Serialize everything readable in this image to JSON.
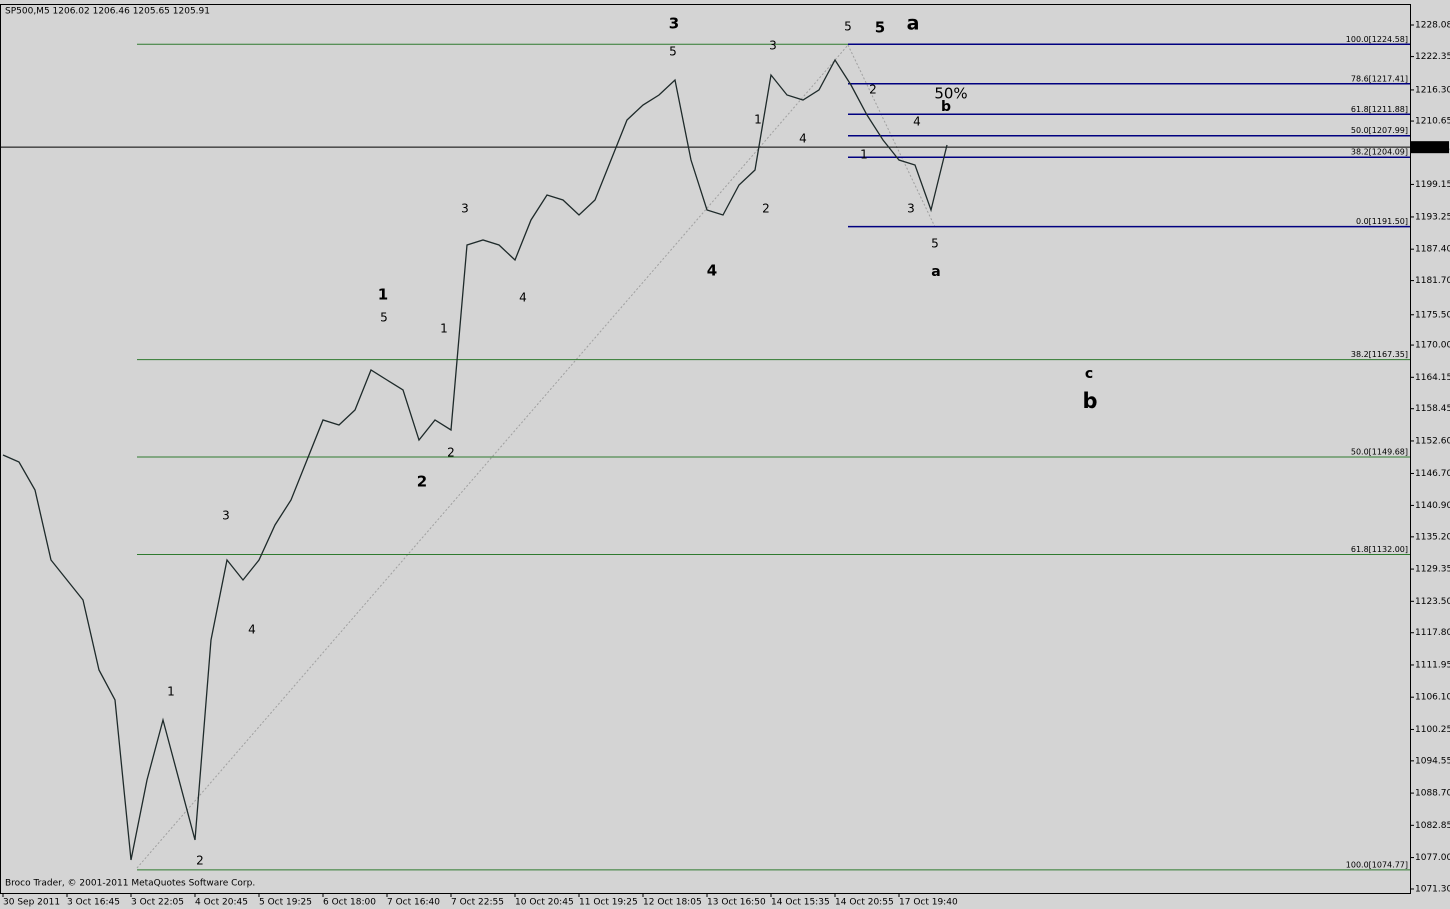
{
  "chart_data": {
    "type": "line",
    "title": "SP500,M5  1206.02 1206.46 1205.65 1205.91",
    "footer": "Broco Trader, © 2001-2011 MetaQuotes Software Corp.",
    "categories": [
      "30 Sep 2011",
      null,
      null,
      null,
      "3 Oct 16:45",
      null,
      null,
      null,
      "3 Oct 22:05",
      null,
      null,
      null,
      "4 Oct 20:45",
      null,
      null,
      null,
      "5 Oct 19:25",
      null,
      null,
      null,
      "6 Oct 18:00",
      null,
      null,
      null,
      "7 Oct 16:40",
      null,
      null,
      null,
      "7 Oct 22:55",
      null,
      null,
      null,
      "10 Oct 20:45",
      null,
      null,
      null,
      "11 Oct 19:25",
      null,
      null,
      null,
      "12 Oct 18:05",
      null,
      null,
      null,
      "13 Oct 16:50",
      null,
      null,
      null,
      "14 Oct 15:35",
      null,
      null,
      null,
      "14 Oct 20:55",
      null,
      null,
      null,
      "17 Oct 19:40",
      null,
      null,
      null,
      null,
      null,
      null,
      null,
      null,
      null,
      null,
      null,
      null,
      null,
      null,
      null,
      null,
      null,
      null,
      null,
      null,
      null,
      null,
      null,
      null,
      null,
      null,
      null,
      null,
      null,
      null,
      null
    ],
    "series": [
      {
        "name": "SP500,M5",
        "color": "#1e2a2a",
        "values": [
          1150.05,
          1148.78,
          1143.7,
          1131.0,
          1127.37,
          1123.74,
          1111.04,
          1105.6,
          1076.56,
          1091.08,
          1101.97,
          1091.08,
          1080.19,
          1116.49,
          1131.0,
          1127.37,
          1131.0,
          1137.35,
          1141.89,
          1149.15,
          1156.41,
          1155.5,
          1158.22,
          1165.48,
          1163.66,
          1161.85,
          1152.77,
          1156.41,
          1154.59,
          1188.16,
          1189.07,
          1188.16,
          1185.44,
          1192.7,
          1197.23,
          1196.33,
          1193.6,
          1196.33,
          1203.58,
          1210.84,
          1213.56,
          1215.38,
          1218.1,
          1203.58,
          1194.51,
          1193.6,
          1199.05,
          1201.77,
          1219.01,
          1215.38,
          1214.47,
          1216.29,
          1221.73,
          1217.19,
          1211.75,
          1207.21,
          1203.58,
          1202.68,
          1194.51,
          1206.3,
          null,
          null,
          null,
          null,
          null,
          null,
          null,
          null,
          null,
          null,
          null,
          null,
          null,
          null,
          null,
          null,
          null,
          null,
          null,
          null,
          null,
          null,
          null,
          null,
          null,
          null,
          null,
          null
        ]
      }
    ],
    "ylim": [
      1070.57,
      1231.71
    ],
    "yticks": [
      {
        "value": 1228.08,
        "label": "1228.08"
      },
      {
        "value": 1222.35,
        "label": "1222.35"
      },
      {
        "value": 1216.3,
        "label": "1216.30"
      },
      {
        "value": 1210.65,
        "label": "1210.65"
      },
      {
        "value": 1199.15,
        "label": "1199.15"
      },
      {
        "value": 1193.25,
        "label": "1193.25"
      },
      {
        "value": 1187.4,
        "label": "1187.40"
      },
      {
        "value": 1181.7,
        "label": "1181.70"
      },
      {
        "value": 1175.5,
        "label": "1175.50"
      },
      {
        "value": 1170.0,
        "label": "1170.00"
      },
      {
        "value": 1164.15,
        "label": "1164.15"
      },
      {
        "value": 1158.45,
        "label": "1158.45"
      },
      {
        "value": 1152.6,
        "label": "1152.60"
      },
      {
        "value": 1146.7,
        "label": "1146.70"
      },
      {
        "value": 1140.9,
        "label": "1140.90"
      },
      {
        "value": 1135.2,
        "label": "1135.20"
      },
      {
        "value": 1129.35,
        "label": "1129.35"
      },
      {
        "value": 1123.5,
        "label": "1123.50"
      },
      {
        "value": 1117.8,
        "label": "1117.80"
      },
      {
        "value": 1111.95,
        "label": "1111.95"
      },
      {
        "value": 1106.1,
        "label": "1106.10"
      },
      {
        "value": 1100.25,
        "label": "1100.25"
      },
      {
        "value": 1094.55,
        "label": "1094.55"
      },
      {
        "value": 1088.7,
        "label": "1088.70"
      },
      {
        "value": 1082.85,
        "label": "1082.85"
      },
      {
        "value": 1077.0,
        "label": "1077.00"
      },
      {
        "value": 1071.3,
        "label": "1071.30"
      }
    ],
    "current_price": 1205.91,
    "fib_green": {
      "color": "#2f7a2f",
      "levels": [
        {
          "value": 1224.58,
          "label": null
        },
        {
          "value": 1167.35,
          "label": "38.2[1167.35]"
        },
        {
          "value": 1149.68,
          "label": "50.0[1149.68]"
        },
        {
          "value": 1132.0,
          "label": "61.8[1132.00]"
        },
        {
          "value": 1074.77,
          "label": "100.0[1074.77]"
        }
      ]
    },
    "fib_blue": {
      "color": "#000080",
      "levels": [
        {
          "value": 1224.58,
          "label": "100.0[1224.58]"
        },
        {
          "value": 1217.41,
          "label": "78.6[1217.41]"
        },
        {
          "value": 1211.88,
          "label": "61.8[1211.88]"
        },
        {
          "value": 1207.99,
          "label": "50.0[1207.99]"
        },
        {
          "value": 1204.09,
          "label": "38.2[1204.09]"
        },
        {
          "value": 1191.5,
          "label": "0.0[1191.50]"
        }
      ]
    },
    "annotations": [
      {
        "text": "1",
        "color": "#ff0000"
      },
      {
        "text": "2",
        "color": "#ff0000"
      },
      {
        "text": "3",
        "color": "#ff0000"
      },
      {
        "text": "4",
        "color": "#ff0000"
      },
      {
        "text": "5",
        "color": "#ff0000"
      },
      {
        "text": "1",
        "color": "#ff0000"
      },
      {
        "text": "2",
        "color": "#ff0000"
      },
      {
        "text": "3",
        "color": "#ff0000"
      },
      {
        "text": "4",
        "color": "#ff0000"
      },
      {
        "text": "5",
        "color": "#ff0000"
      },
      {
        "text": "1",
        "color": "#ff0000"
      },
      {
        "text": "2",
        "color": "#ff0000"
      },
      {
        "text": "3",
        "color": "#ff0000"
      },
      {
        "text": "4",
        "color": "#ff0000"
      },
      {
        "text": "5",
        "color": "#ff0000"
      },
      {
        "text": "2",
        "color": "#ff0000"
      },
      {
        "text": "1",
        "color": "#ff0000"
      },
      {
        "text": "4",
        "color": "#ff0000"
      },
      {
        "text": "3",
        "color": "#ff0000"
      },
      {
        "text": "5",
        "color": "#ff0000"
      },
      {
        "text": "1",
        "color": "#0000ff"
      },
      {
        "text": "2",
        "color": "#0000ff"
      },
      {
        "text": "3",
        "color": "#0000ff"
      },
      {
        "text": "4",
        "color": "#0000ff"
      },
      {
        "text": "5",
        "color": "#0000ff"
      },
      {
        "text": "a",
        "color": "#0000ff"
      },
      {
        "text": "b",
        "color": "#0000ff"
      },
      {
        "text": "50%",
        "color": "#0000ff"
      },
      {
        "text": "c",
        "color": "#0000ff"
      },
      {
        "text": "a",
        "color": "#006400"
      },
      {
        "text": "b",
        "color": "#006400"
      }
    ]
  }
}
